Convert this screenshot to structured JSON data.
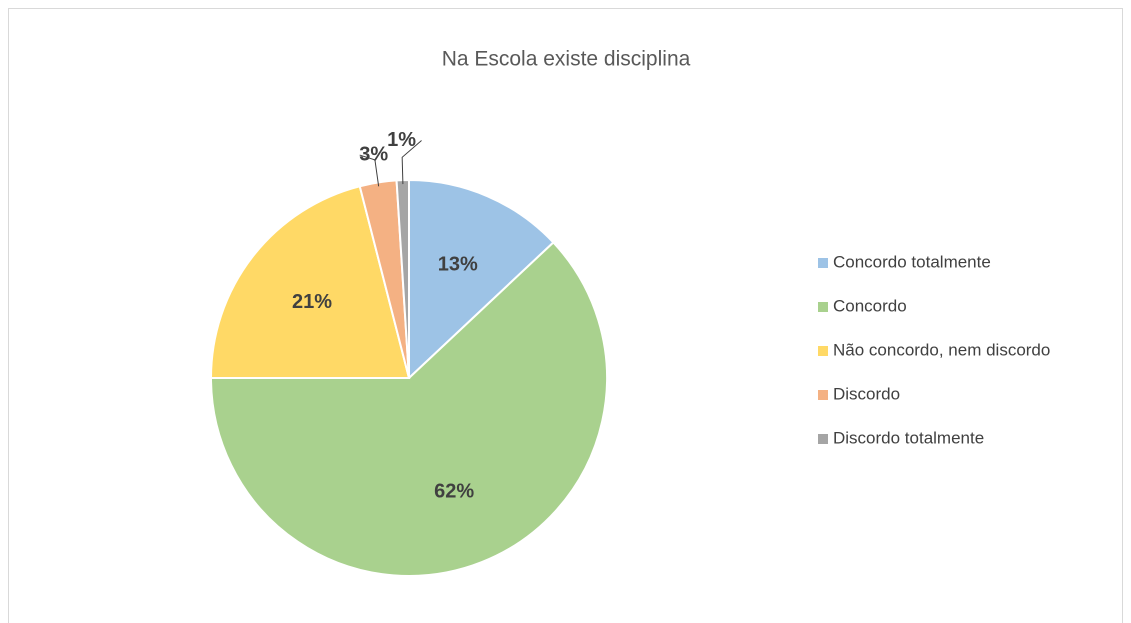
{
  "chart_data": {
    "type": "pie",
    "title": "Na Escola existe disciplina",
    "categories": [
      "Concordo totalmente",
      "Concordo",
      "Não concordo, nem discordo",
      "Discordo",
      "Discordo totalmente"
    ],
    "values": [
      13,
      62,
      21,
      3,
      1
    ],
    "value_labels": [
      "13%",
      "62%",
      "21%",
      "3%",
      "1%"
    ],
    "colors": [
      "#9dc3e6",
      "#a9d18e",
      "#ffd966",
      "#f4b183",
      "#a5a5a5"
    ],
    "legend": "right"
  }
}
